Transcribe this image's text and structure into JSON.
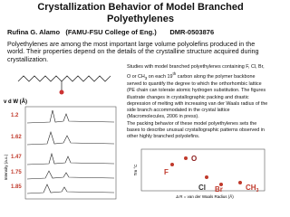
{
  "header": {
    "title_lines": [
      "Crystallization Behavior of Model Branched",
      "Polyethylenes"
    ],
    "author": "Rufina G. Alamo",
    "affiliation": "(FAMU-FSU College of Eng.)",
    "grant": "DMR-0503876"
  },
  "intro": "Polyethylenes are among the most important large volume polyolefins produced in the world. Their properties depend on the details of the crystalline structure acquired during crystallization.",
  "description": [
    "Studies with model branched polyethylenes containing F, Cl, Br, O or CH",
    "3",
    " on each 19",
    "th",
    " carbon along the polymer backbone served to quantify the degree to which the orthorhombic lattice (PE chain can tolerate atomic hydrogen substitution. The figures illustrate changes in crystallographic packing and drastic depression of melting with increasing van der Waals radius of the side branch accommodated in the crystal lattice (Macromolecules, 2006 in press).",
    "The packing behavior of these model polyethylenes sets the bases to describe unusual crystallographic patterns observed in other highly branched polyolefins."
  ],
  "left_figure": {
    "label": "v d W (Å)",
    "y_axis_label": "Intensity (a.u.)",
    "radii": [
      1.2,
      1.62,
      1.47,
      1.75,
      1.85
    ]
  },
  "right_figure": {
    "y_axis_label": "Tm °C",
    "x_axis_label": "Δ R = van der Waals Radius (Å)",
    "points": [
      "F",
      "O",
      "Cl",
      "Br",
      [
        "CH",
        "3"
      ]
    ]
  }
}
